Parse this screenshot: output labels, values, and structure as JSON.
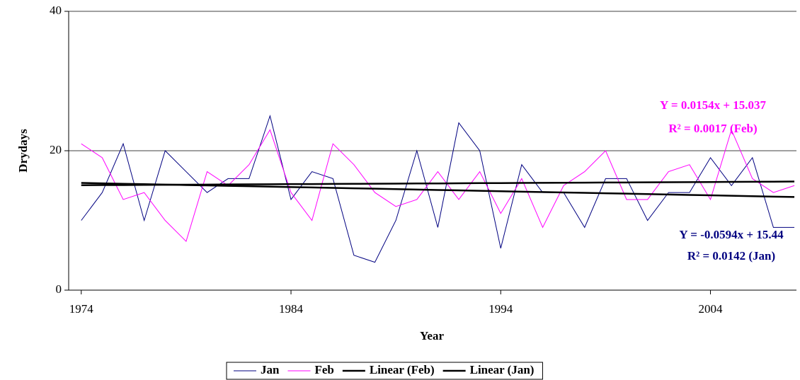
{
  "chart_data": {
    "type": "line",
    "x_label": "Year",
    "y_label": "Drydays",
    "x": [
      1974,
      1975,
      1976,
      1977,
      1978,
      1979,
      1980,
      1981,
      1982,
      1983,
      1984,
      1985,
      1986,
      1987,
      1988,
      1989,
      1990,
      1991,
      1992,
      1993,
      1994,
      1995,
      1996,
      1997,
      1998,
      1999,
      2000,
      2001,
      2002,
      2003,
      2004,
      2005,
      2006,
      2007,
      2008
    ],
    "xlim": [
      1973.4,
      2008.1
    ],
    "xticks": [
      1974,
      1984,
      1994,
      2004
    ],
    "ylim": [
      0,
      40
    ],
    "yticks": [
      0,
      20,
      40
    ],
    "grid": true,
    "legend": "bottom",
    "series": [
      {
        "name": "Jan",
        "color": "#000080",
        "width": 1,
        "values": [
          10,
          14,
          21,
          10,
          20,
          17,
          14,
          16,
          16,
          25,
          13,
          17,
          16,
          5,
          4,
          10,
          20,
          9,
          24,
          20,
          6,
          18,
          14,
          14,
          9,
          16,
          16,
          10,
          14,
          14,
          19,
          15,
          19,
          9,
          9
        ]
      },
      {
        "name": "Feb",
        "color": "#ff00ff",
        "width": 1,
        "values": [
          21,
          19,
          13,
          14,
          10,
          7,
          17,
          15,
          18,
          23,
          14,
          10,
          21,
          18,
          14,
          12,
          13,
          17,
          13,
          17,
          11,
          16,
          9,
          15,
          17,
          20,
          13,
          13,
          17,
          18,
          13,
          23,
          16,
          14,
          15
        ]
      },
      {
        "name": "Linear (Feb)",
        "color": "#000000",
        "width": 2.5,
        "values": [
          15.05,
          15.07,
          15.08,
          15.1,
          15.11,
          15.13,
          15.14,
          15.16,
          15.18,
          15.19,
          15.21,
          15.22,
          15.24,
          15.25,
          15.27,
          15.28,
          15.3,
          15.31,
          15.33,
          15.35,
          15.36,
          15.38,
          15.39,
          15.41,
          15.42,
          15.44,
          15.45,
          15.47,
          15.48,
          15.5,
          15.51,
          15.53,
          15.55,
          15.56,
          15.58
        ]
      },
      {
        "name": "Linear (Jan)",
        "color": "#000000",
        "width": 2.5,
        "values": [
          15.38,
          15.32,
          15.26,
          15.2,
          15.14,
          15.08,
          15.02,
          14.96,
          14.91,
          14.85,
          14.79,
          14.73,
          14.67,
          14.61,
          14.55,
          14.49,
          14.43,
          14.37,
          14.31,
          14.25,
          14.19,
          14.13,
          14.07,
          14.01,
          13.96,
          13.9,
          13.84,
          13.78,
          13.72,
          13.66,
          13.6,
          13.54,
          13.48,
          13.42,
          13.36
        ]
      }
    ],
    "annotations": [
      {
        "lines": [
          "Y = 0.0154x + 15.037",
          "R² = 0.0017 (Feb)"
        ],
        "color": "#ff00ff"
      },
      {
        "lines": [
          "Y = -0.0594x + 15.44",
          "R² = 0.0142 (Jan)"
        ],
        "color": "#000080"
      }
    ]
  }
}
